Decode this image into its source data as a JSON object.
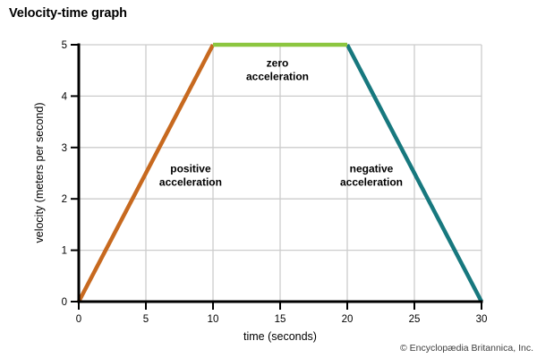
{
  "title": "Velocity-time graph",
  "copyright": "© Encyclopædia Britannica, Inc.",
  "colors": {
    "grid": "#cccccc",
    "axis": "#000000",
    "tick_text": "#000000",
    "orange": "#c7691f",
    "green": "#8cc63f",
    "teal": "#17787e"
  },
  "chart_data": {
    "type": "line",
    "title": "Velocity-time graph",
    "xlabel": "time (seconds)",
    "ylabel": "velocity (meters per second)",
    "xlim": [
      0,
      30
    ],
    "ylim": [
      0,
      5
    ],
    "xticks": [
      0,
      5,
      10,
      15,
      20,
      25,
      30
    ],
    "yticks": [
      0,
      1,
      2,
      3,
      4,
      5
    ],
    "grid": true,
    "legend_position": "none",
    "series": [
      {
        "name": "positive acceleration",
        "color": "#c7691f",
        "points": [
          [
            0,
            0
          ],
          [
            10,
            5
          ]
        ],
        "label_lines": [
          "positive",
          "acceleration"
        ],
        "label_at": [
          8.33,
          2.43
        ]
      },
      {
        "name": "zero acceleration",
        "color": "#8cc63f",
        "points": [
          [
            10,
            5
          ],
          [
            20,
            5
          ]
        ],
        "label_lines": [
          "zero",
          "acceleration"
        ],
        "label_at": [
          14.8,
          4.49
        ]
      },
      {
        "name": "negative acceleration",
        "color": "#17787e",
        "points": [
          [
            20,
            5
          ],
          [
            30,
            0
          ]
        ],
        "label_lines": [
          "negative",
          "acceleration"
        ],
        "label_at": [
          21.8,
          2.43
        ]
      }
    ]
  }
}
